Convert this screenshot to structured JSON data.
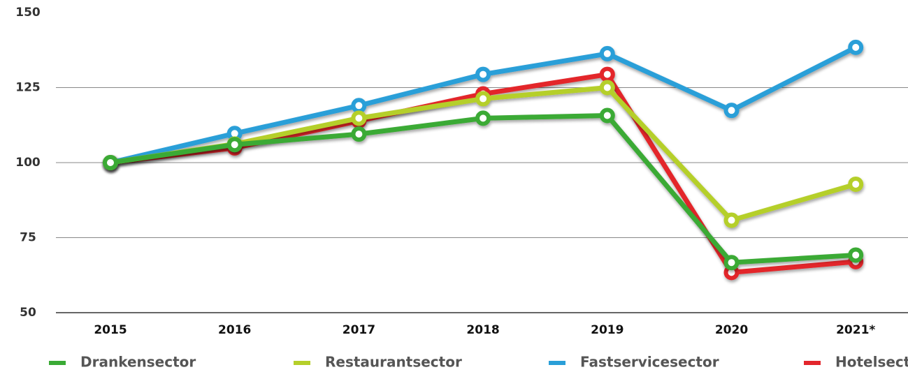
{
  "chart_data": {
    "type": "line",
    "categories": [
      "2015",
      "2016",
      "2017",
      "2018",
      "2019",
      "2020",
      "2021*"
    ],
    "series": [
      {
        "name": "Drankensector",
        "color": "#3aaa35",
        "values": [
          100,
          106,
          109.5,
          114.8,
          115.7,
          66.7,
          69.2
        ]
      },
      {
        "name": "Restaurantsector",
        "color": "#b5cf2a",
        "values": [
          100,
          106.2,
          114.8,
          121.3,
          125,
          80.8,
          92.8
        ]
      },
      {
        "name": "Fastservicesector",
        "color": "#2a9fd8",
        "values": [
          100,
          109.7,
          119,
          129.4,
          136.3,
          117.4,
          138.4
        ]
      },
      {
        "name": "Hotelsector",
        "color": "#e3262c",
        "values": [
          100,
          104.9,
          113.9,
          122.9,
          129.4,
          63.4,
          67
        ]
      }
    ],
    "ylim": [
      50,
      150
    ],
    "yticks": [
      50,
      75,
      100,
      125,
      150
    ],
    "grid": true
  }
}
